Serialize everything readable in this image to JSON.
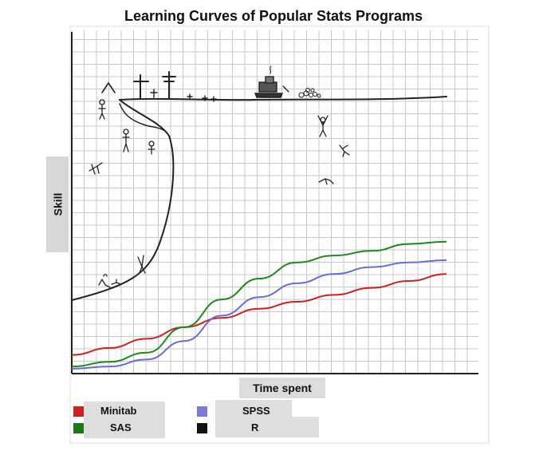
{
  "title": "Learning Curves of Popular Stats Programs",
  "chart_data": {
    "type": "line",
    "title": "Learning Curves of Popular Stats Programs",
    "xlabel": "Time spent",
    "ylabel": "Skill",
    "grid": true,
    "x": [
      0,
      1,
      2,
      3,
      4,
      5,
      6,
      7,
      8,
      9,
      10
    ],
    "series": [
      {
        "name": "Minitab",
        "color": "#cc2222",
        "values": [
          0.6,
          0.9,
          1.3,
          1.8,
          2.2,
          2.6,
          2.9,
          3.2,
          3.5,
          3.8,
          4.1
        ]
      },
      {
        "name": "SAS",
        "color": "#1a8a1a",
        "values": [
          0.1,
          0.3,
          0.7,
          1.8,
          3.0,
          3.9,
          4.6,
          4.9,
          5.1,
          5.4,
          5.5
        ]
      },
      {
        "name": "SPSS",
        "color": "#6b6bd6",
        "values": [
          0.0,
          0.1,
          0.4,
          1.2,
          2.3,
          3.1,
          3.7,
          4.1,
          4.4,
          4.6,
          4.7
        ]
      },
      {
        "name": "R",
        "color": "#111111",
        "values": [
          3.7,
          4.2,
          6.0,
          9.5,
          11.0,
          11.1,
          11.1,
          11.1,
          11.15,
          11.2,
          11.25
        ]
      }
    ],
    "legend": "bottom"
  },
  "legend": [
    {
      "name": "Minitab",
      "color": "#cc2222"
    },
    {
      "name": "SPSS",
      "color": "#7a7adf"
    },
    {
      "name": "SAS",
      "color": "#1a7a1a"
    },
    {
      "name": "R",
      "color": "#111111"
    }
  ]
}
